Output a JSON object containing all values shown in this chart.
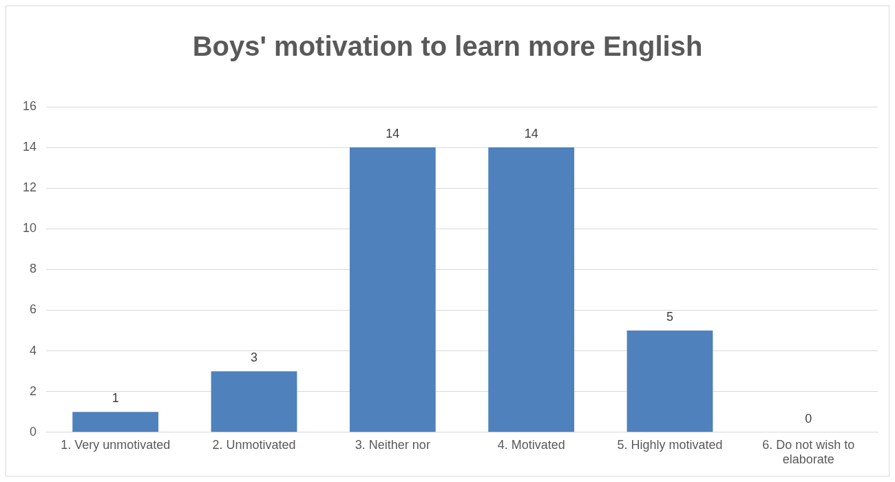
{
  "chart_data": {
    "type": "bar",
    "title": "Boys' motivation to learn more English",
    "categories": [
      "1. Very unmotivated",
      "2. Unmotivated",
      "3. Neither nor",
      "4. Motivated",
      "5. Highly motivated",
      "6. Do not wish to elaborate"
    ],
    "values": [
      1,
      3,
      14,
      14,
      5,
      0
    ],
    "color": "#4f81bd",
    "ylim": [
      0,
      16
    ],
    "yticks": [
      0,
      2,
      4,
      6,
      8,
      10,
      12,
      14,
      16
    ],
    "grid": "y",
    "data_labels": true
  }
}
